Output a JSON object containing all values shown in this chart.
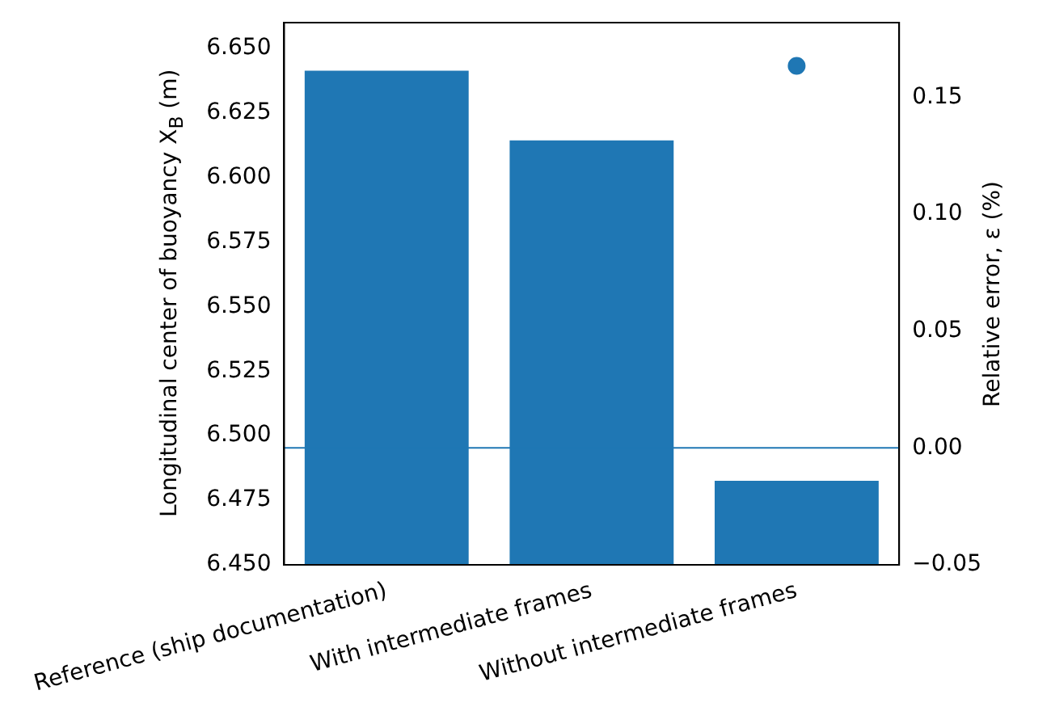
{
  "chart_data": {
    "type": "bar",
    "categories": [
      "Reference (ship documentation)",
      "With intermediate frames",
      "Without intermediate frames"
    ],
    "series": [
      {
        "color": "#1f77b4",
        "values": [
          6.6414,
          6.6144,
          6.4825
        ]
      },
      {
        "type": "scatter",
        "axis": "y2",
        "color": "#1f77b4",
        "values": [
          null,
          null,
          0.1635
        ]
      }
    ],
    "ylabel": "Longitudinal center of buoyancy X$_{B}$ (m)",
    "y2label": "Relative error, ε (%)",
    "ylim": [
      6.45,
      6.66
    ],
    "yticks": [
      {
        "value": 6.45,
        "label": "6.450"
      },
      {
        "value": 6.475,
        "label": "6.475"
      },
      {
        "value": 6.5,
        "label": "6.500"
      },
      {
        "value": 6.525,
        "label": "6.525"
      },
      {
        "value": 6.55,
        "label": "6.550"
      },
      {
        "value": 6.575,
        "label": "6.575"
      },
      {
        "value": 6.6,
        "label": "6.600"
      },
      {
        "value": 6.625,
        "label": "6.625"
      },
      {
        "value": 6.65,
        "label": "6.650"
      }
    ],
    "y2lim": [
      -0.05,
      0.182
    ],
    "y2ticks": [
      {
        "value": -0.05,
        "label": "−0.05"
      },
      {
        "value": 0,
        "label": "0.00"
      },
      {
        "value": 0.05,
        "label": "0.05"
      },
      {
        "value": 0.1,
        "label": "0.10"
      },
      {
        "value": 0.15,
        "label": "0.15"
      }
    ],
    "ref_lines": [
      {
        "axis": "y2",
        "value": 0,
        "color": "#1f77b4"
      }
    ],
    "marker": "circle",
    "grid": false,
    "legend": false
  }
}
